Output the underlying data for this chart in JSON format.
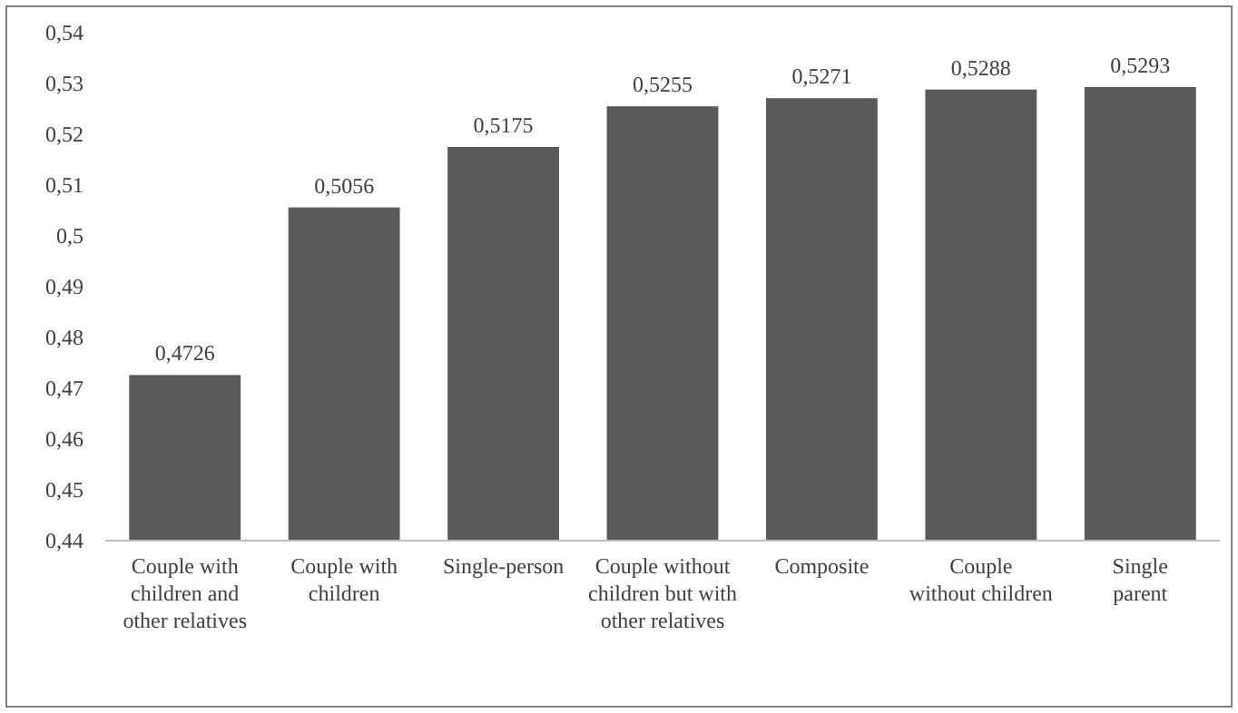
{
  "chart_data": {
    "type": "bar",
    "categories": [
      "Couple with\nchildren and\nother relatives",
      "Couple with\nchildren",
      "Single-person",
      "Couple without\nchildren but with\nother relatives",
      "Composite",
      "Couple\nwithout children",
      "Single\nparent"
    ],
    "values": [
      0.4726,
      0.5056,
      0.5175,
      0.5255,
      0.5271,
      0.5288,
      0.5293
    ],
    "value_labels": [
      "0,4726",
      "0,5056",
      "0,5175",
      "0,5255",
      "0,5271",
      "0,5288",
      "0,5293"
    ],
    "color": "#595959",
    "ylim": [
      0.44,
      0.54
    ],
    "yticks": [
      {
        "value": 0.44,
        "label": "0,44"
      },
      {
        "value": 0.45,
        "label": "0,45"
      },
      {
        "value": 0.46,
        "label": "0,46"
      },
      {
        "value": 0.47,
        "label": "0,47"
      },
      {
        "value": 0.48,
        "label": "0,48"
      },
      {
        "value": 0.49,
        "label": "0,49"
      },
      {
        "value": 0.5,
        "label": "0,5"
      },
      {
        "value": 0.51,
        "label": "0,51"
      },
      {
        "value": 0.52,
        "label": "0,52"
      },
      {
        "value": 0.53,
        "label": "0,53"
      },
      {
        "value": 0.54,
        "label": "0,54"
      }
    ],
    "grid": false
  }
}
